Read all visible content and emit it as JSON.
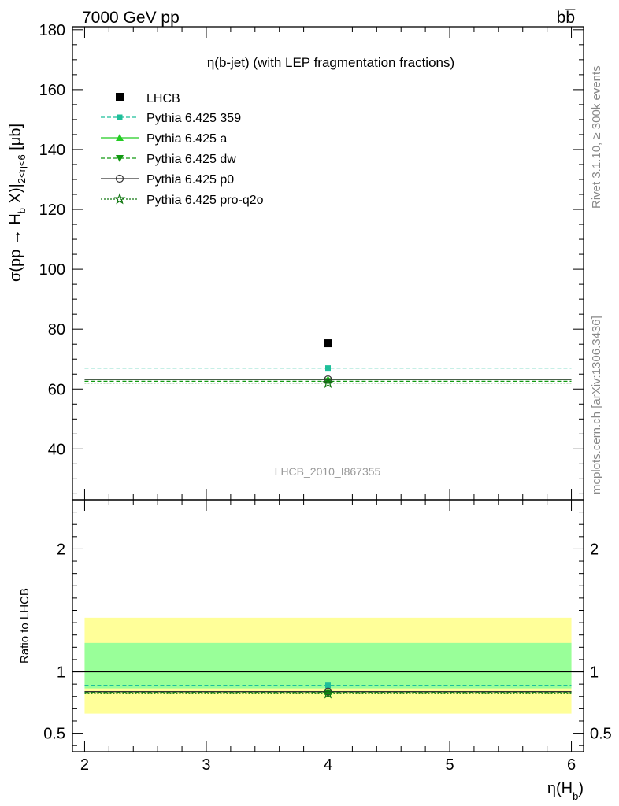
{
  "header": {
    "left_title": "7000 GeV pp",
    "right_title": "bb̅"
  },
  "side_text": {
    "rivet": "Rivet 3.1.10, ≥ 300k events",
    "mcplots": "mcplots.cern.ch [arXiv:1306.3436]"
  },
  "chart_data": {
    "type": "scatter",
    "title": "η(b-jet) (with LEP fragmentation fractions)",
    "analysis_label": "LHCB_2010_I867355",
    "ylabel": "σ(pp → H_b X)|_{2<η<6} [μb]",
    "ylabel_parts": {
      "main": "σ(pp → H",
      "sub_b": "b",
      "mid": " X)|",
      "sub_range": "2<η<6",
      "unit": " [μb]"
    },
    "xlabel": "η(H_b)",
    "xlabel_parts": {
      "main": "η(H",
      "sub": "b",
      "close": ")"
    },
    "ratio_ylabel": "Ratio to LHCB",
    "xlim": [
      1.9,
      6.1
    ],
    "ylim": [
      23,
      181
    ],
    "ratio_ylim": [
      0.35,
      2.4
    ],
    "x_ticks": [
      "2",
      "3",
      "4",
      "5",
      "6"
    ],
    "y_ticks": [
      "40",
      "60",
      "80",
      "100",
      "120",
      "140",
      "160",
      "180"
    ],
    "ratio_y_ticks": [
      "0.5",
      "1",
      "2"
    ],
    "data": {
      "name": "LHCB",
      "x": 4,
      "y": 75.3,
      "x_range": [
        2,
        6
      ],
      "band_inner": [
        0.865,
        1.235
      ],
      "band_outer": [
        0.66,
        1.44
      ]
    },
    "series": [
      {
        "name": "Pythia 6.425 359",
        "x_range": [
          2,
          6
        ],
        "y": 67.0,
        "ratio": 0.89,
        "color": "#1fbf9a",
        "dash": "5,3",
        "marker": "square-small"
      },
      {
        "name": "Pythia 6.425 a",
        "x_range": [
          2,
          6
        ],
        "y": 63.2,
        "ratio": 0.838,
        "color": "#22cc22",
        "dash": "",
        "marker": "triangle-up"
      },
      {
        "name": "Pythia 6.425 dw",
        "x_range": [
          2,
          6
        ],
        "y": 62.6,
        "ratio": 0.831,
        "color": "#119911",
        "dash": "5,3",
        "marker": "triangle-down"
      },
      {
        "name": "Pythia 6.425 p0",
        "x_range": [
          2,
          6
        ],
        "y": 63.2,
        "ratio": 0.839,
        "color": "#333333",
        "dash": "",
        "marker": "circle-open"
      },
      {
        "name": "Pythia 6.425 pro-q2o",
        "x_range": [
          2,
          6
        ],
        "y": 62.0,
        "ratio": 0.823,
        "color": "#117711",
        "dash": "2,2",
        "marker": "star-open"
      }
    ],
    "colors": {
      "band_inner": "#99ff99",
      "band_outer": "#ffff99",
      "data": "#000000"
    }
  }
}
